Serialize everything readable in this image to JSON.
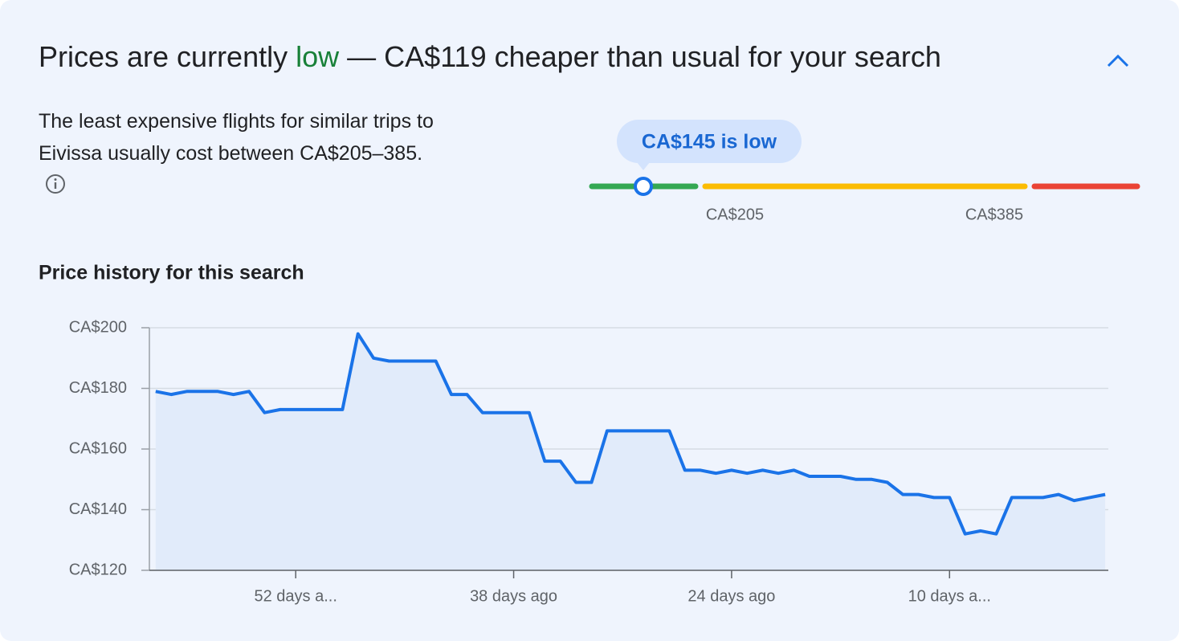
{
  "header": {
    "title_prefix": "Prices are currently",
    "title_status": "low",
    "title_suffix": "— CA$119 cheaper than usual for your search"
  },
  "summary": {
    "text": "The least expensive flights for similar trips to Eivissa usually cost between CA$205–385."
  },
  "price_range": {
    "current_label": "CA$145 is low",
    "low_bound": "CA$205",
    "high_bound": "CA$385"
  },
  "chart_data": {
    "type": "line",
    "title": "Price history for this search",
    "x": [
      61,
      60,
      59,
      58,
      57,
      56,
      55,
      54,
      53,
      52,
      51,
      50,
      49,
      48,
      47,
      46,
      45,
      44,
      43,
      42,
      41,
      40,
      39,
      38,
      37,
      36,
      35,
      34,
      33,
      32,
      31,
      30,
      29,
      28,
      27,
      26,
      25,
      24,
      23,
      22,
      21,
      20,
      19,
      18,
      17,
      16,
      15,
      14,
      13,
      12,
      11,
      10,
      9,
      8,
      7,
      6,
      5,
      4,
      3,
      2,
      1,
      0
    ],
    "series": [
      {
        "name": "Price",
        "color": "#1a73e8",
        "values": [
          179,
          178,
          179,
          179,
          179,
          178,
          179,
          172,
          173,
          173,
          173,
          173,
          173,
          198,
          190,
          189,
          189,
          189,
          189,
          178,
          178,
          172,
          172,
          172,
          172,
          156,
          156,
          149,
          149,
          166,
          166,
          166,
          166,
          166,
          153,
          153,
          152,
          153,
          152,
          153,
          152,
          153,
          151,
          151,
          151,
          150,
          150,
          149,
          145,
          145,
          144,
          144,
          132,
          133,
          132,
          144,
          144,
          144,
          145,
          143,
          144,
          145
        ]
      }
    ],
    "xlim": [
      61.4,
      -0.2
    ],
    "xticks": [
      {
        "value": 52,
        "label": "52 days a..."
      },
      {
        "value": 38,
        "label": "38 days ago"
      },
      {
        "value": 24,
        "label": "24 days ago"
      },
      {
        "value": 10,
        "label": "10 days a..."
      }
    ],
    "ylim": [
      120,
      200
    ],
    "yticks": [
      {
        "value": 120,
        "label": "CA$120"
      },
      {
        "value": 140,
        "label": "CA$140"
      },
      {
        "value": 160,
        "label": "CA$160"
      },
      {
        "value": 180,
        "label": "CA$180"
      },
      {
        "value": 200,
        "label": "CA$200"
      }
    ],
    "grid": true,
    "fill": "#e1ebfa"
  }
}
